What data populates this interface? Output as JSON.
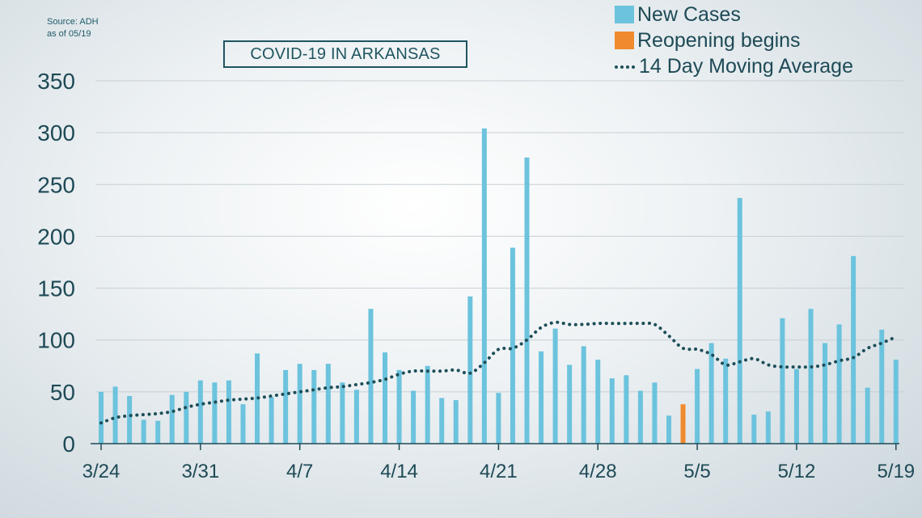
{
  "source_lines": [
    "Source: ADH",
    "as of 05/19"
  ],
  "colors": {
    "new_cases": "#6cc3dd",
    "reopening": "#f08a2e",
    "moving_average": "#1d4f59",
    "axis_text": "#1e4a56",
    "grid": "#c7d0d5"
  },
  "chart_data": {
    "type": "bar",
    "title": "COVID-19 IN ARKANSAS",
    "xlabel": "",
    "ylabel": "",
    "ylim": [
      0,
      350
    ],
    "yticks": [
      0,
      50,
      100,
      150,
      200,
      250,
      300,
      350
    ],
    "x_tick_labels": [
      "3/24",
      "3/31",
      "4/7",
      "4/14",
      "4/21",
      "4/28",
      "5/5",
      "5/12",
      "5/19"
    ],
    "grid": "horizontal",
    "legend_position": "top-right",
    "categories": [
      "3/24",
      "3/25",
      "3/26",
      "3/27",
      "3/28",
      "3/29",
      "3/30",
      "3/31",
      "4/1",
      "4/2",
      "4/3",
      "4/4",
      "4/5",
      "4/6",
      "4/7",
      "4/8",
      "4/9",
      "4/10",
      "4/11",
      "4/12",
      "4/13",
      "4/14",
      "4/15",
      "4/16",
      "4/17",
      "4/18",
      "4/19",
      "4/20",
      "4/21",
      "4/22",
      "4/23",
      "4/24",
      "4/25",
      "4/26",
      "4/27",
      "4/28",
      "4/29",
      "4/30",
      "5/1",
      "5/2",
      "5/3",
      "5/4",
      "5/5",
      "5/6",
      "5/7",
      "5/8",
      "5/9",
      "5/10",
      "5/11",
      "5/12",
      "5/13",
      "5/14",
      "5/15",
      "5/16",
      "5/17",
      "5/18",
      "5/19"
    ],
    "series": [
      {
        "name": "New Cases",
        "type": "bar",
        "values": [
          50,
          55,
          46,
          23,
          22,
          47,
          50,
          61,
          59,
          61,
          38,
          87,
          45,
          71,
          77,
          71,
          77,
          59,
          52,
          130,
          88,
          71,
          51,
          75,
          44,
          42,
          142,
          304,
          49,
          189,
          276,
          89,
          111,
          76,
          94,
          81,
          63,
          66,
          51,
          59,
          27,
          0,
          72,
          97,
          82,
          237,
          28,
          31,
          121,
          72,
          130,
          97,
          115,
          181,
          54,
          110,
          81
        ]
      },
      {
        "name": "Reopening begins",
        "type": "bar",
        "values": [
          0,
          0,
          0,
          0,
          0,
          0,
          0,
          0,
          0,
          0,
          0,
          0,
          0,
          0,
          0,
          0,
          0,
          0,
          0,
          0,
          0,
          0,
          0,
          0,
          0,
          0,
          0,
          0,
          0,
          0,
          0,
          0,
          0,
          0,
          0,
          0,
          0,
          0,
          0,
          0,
          0,
          38,
          0,
          0,
          0,
          0,
          0,
          0,
          0,
          0,
          0,
          0,
          0,
          0,
          0,
          0,
          0
        ]
      },
      {
        "name": "14 Day Moving Average",
        "type": "line",
        "style": "dotted",
        "values": [
          20,
          25,
          27,
          28,
          29,
          31,
          35,
          38,
          40,
          42,
          43,
          44,
          46,
          48,
          50,
          52,
          54,
          55,
          57,
          59,
          62,
          67,
          70,
          70,
          70,
          71,
          68,
          78,
          91,
          92,
          100,
          112,
          117,
          115,
          115,
          116,
          116,
          116,
          116,
          115,
          104,
          92,
          91,
          86,
          76,
          79,
          82,
          76,
          74,
          74,
          74,
          76,
          80,
          83,
          92,
          97,
          103
        ]
      }
    ]
  }
}
